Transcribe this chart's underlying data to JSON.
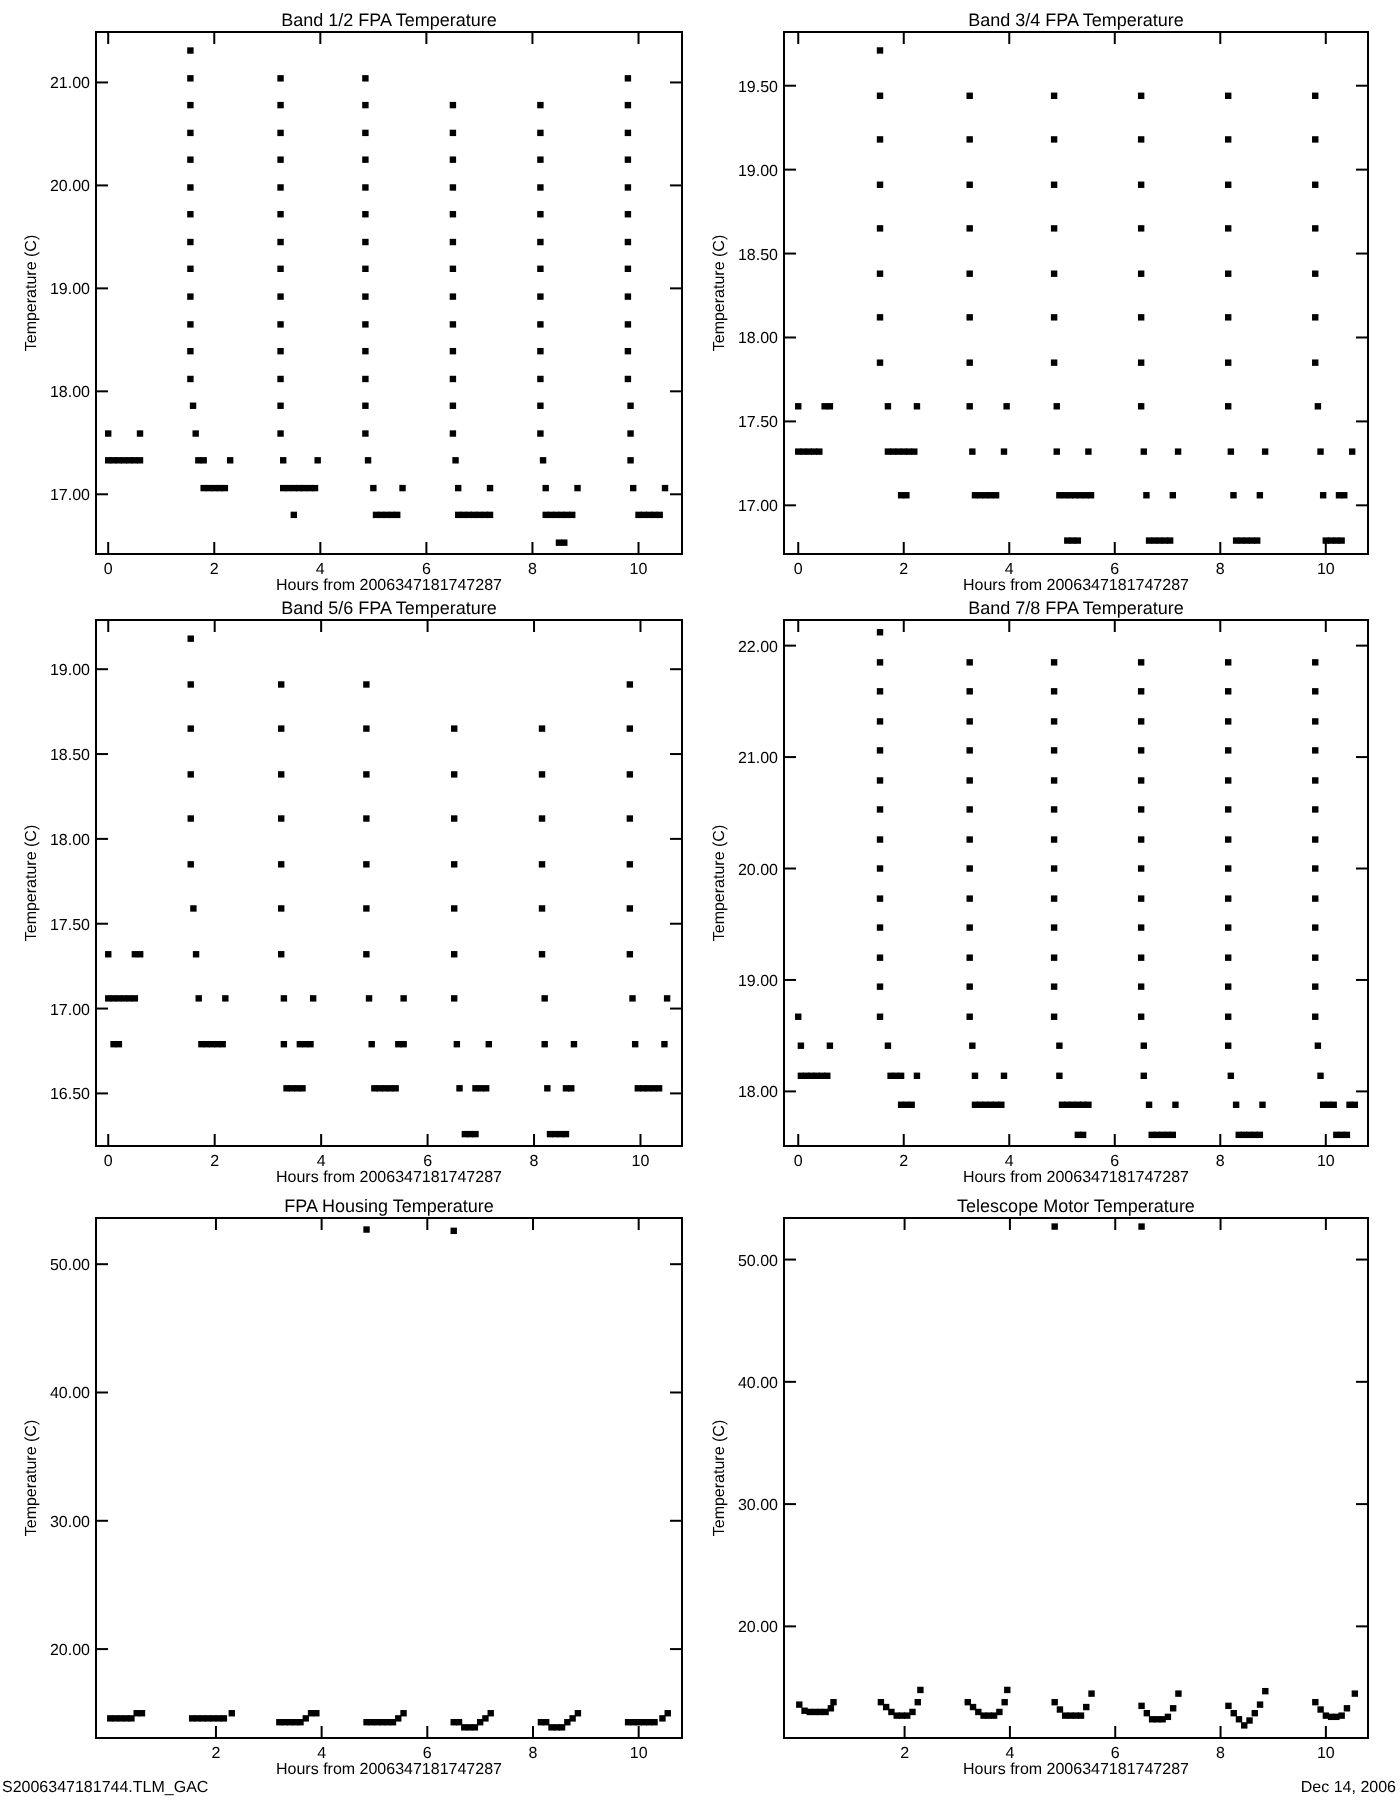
{
  "chart_data": [
    {
      "type": "scatter",
      "title": "Band 1/2 FPA Temperature",
      "xlabel": "Hours from 2006347181747287",
      "ylabel": "Temperature (C)",
      "marker": "square",
      "xlim": [
        -0.23,
        10.82
      ],
      "xticks": [
        0,
        2,
        4,
        6,
        8,
        10
      ],
      "ylim": [
        16.42,
        21.49
      ],
      "yticks": [
        {
          "value": 17,
          "label": "17.00"
        },
        {
          "value": 18,
          "label": "18.00"
        },
        {
          "value": 19,
          "label": "19.00"
        },
        {
          "value": 20,
          "label": "20.00"
        },
        {
          "value": 21,
          "label": "21.00"
        }
      ],
      "series": [
        {
          "color": "#000000",
          "x": [
            0,
            0.6,
            0,
            0.1,
            0.2,
            0.3,
            0.4,
            0.5,
            0.6
          ],
          "values": [
            17.59,
            17.59,
            17.33,
            17.33,
            17.33,
            17.33,
            17.33,
            17.33,
            17.33
          ]
        },
        {
          "color": "#000000",
          "x": [
            1.55,
            1.55,
            1.55,
            1.55,
            1.55,
            1.55,
            1.55,
            1.55,
            1.55,
            1.55,
            1.55,
            1.55,
            1.55,
            1.6,
            1.65,
            1.7,
            1.8,
            2.3,
            1.8,
            1.9,
            2.0,
            2.1,
            2.2
          ],
          "values": [
            21.31,
            21.04,
            20.78,
            20.51,
            20.25,
            19.98,
            19.72,
            19.45,
            19.19,
            18.92,
            18.65,
            18.39,
            18.12,
            17.86,
            17.59,
            17.33,
            17.33,
            17.33,
            17.06,
            17.06,
            17.06,
            17.06,
            17.06
          ]
        },
        {
          "color": "#000000",
          "x": [
            3.25,
            3.25,
            3.25,
            3.25,
            3.25,
            3.25,
            3.25,
            3.25,
            3.25,
            3.25,
            3.25,
            3.25,
            3.25,
            3.25,
            3.3,
            3.95,
            3.3,
            3.4,
            3.5,
            3.6,
            3.7,
            3.8,
            3.9,
            3.5
          ],
          "values": [
            21.04,
            20.78,
            20.51,
            20.25,
            19.98,
            19.72,
            19.45,
            19.19,
            18.92,
            18.65,
            18.39,
            18.12,
            17.86,
            17.59,
            17.33,
            17.33,
            17.06,
            17.06,
            17.06,
            17.06,
            17.06,
            17.06,
            17.06,
            16.8
          ]
        },
        {
          "color": "#000000",
          "x": [
            4.85,
            4.85,
            4.85,
            4.85,
            4.85,
            4.85,
            4.85,
            4.85,
            4.85,
            4.85,
            4.85,
            4.85,
            4.85,
            4.85,
            4.9,
            5.0,
            5.55,
            5.05,
            5.15,
            5.25,
            5.35,
            5.45
          ],
          "values": [
            21.04,
            20.78,
            20.51,
            20.25,
            19.98,
            19.72,
            19.45,
            19.19,
            18.92,
            18.65,
            18.39,
            18.12,
            17.86,
            17.59,
            17.33,
            17.06,
            17.06,
            16.8,
            16.8,
            16.8,
            16.8,
            16.8
          ]
        },
        {
          "color": "#000000",
          "x": [
            6.5,
            6.5,
            6.5,
            6.5,
            6.5,
            6.5,
            6.5,
            6.5,
            6.5,
            6.5,
            6.5,
            6.5,
            6.5,
            6.55,
            6.6,
            7.2,
            6.6,
            6.7,
            6.8,
            6.9,
            7.0,
            7.1,
            7.2
          ],
          "values": [
            20.78,
            20.51,
            20.25,
            19.98,
            19.72,
            19.45,
            19.19,
            18.92,
            18.65,
            18.39,
            18.12,
            17.86,
            17.59,
            17.33,
            17.06,
            17.06,
            16.8,
            16.8,
            16.8,
            16.8,
            16.8,
            16.8,
            16.8
          ]
        },
        {
          "color": "#000000",
          "x": [
            8.15,
            8.15,
            8.15,
            8.15,
            8.15,
            8.15,
            8.15,
            8.15,
            8.15,
            8.15,
            8.15,
            8.15,
            8.15,
            8.2,
            8.25,
            8.85,
            8.25,
            8.35,
            8.45,
            8.55,
            8.65,
            8.75,
            8.5,
            8.6
          ],
          "values": [
            20.78,
            20.51,
            20.25,
            19.98,
            19.72,
            19.45,
            19.19,
            18.92,
            18.65,
            18.39,
            18.12,
            17.86,
            17.59,
            17.33,
            17.06,
            17.06,
            16.8,
            16.8,
            16.8,
            16.8,
            16.8,
            16.8,
            16.53,
            16.53
          ]
        },
        {
          "color": "#000000",
          "x": [
            9.8,
            9.8,
            9.8,
            9.8,
            9.8,
            9.8,
            9.8,
            9.8,
            9.8,
            9.8,
            9.8,
            9.8,
            9.85,
            9.85,
            9.85,
            9.9,
            10.5,
            10.0,
            10.1,
            10.2,
            10.3,
            10.4
          ],
          "values": [
            21.04,
            20.78,
            20.51,
            20.25,
            19.98,
            19.72,
            19.45,
            19.19,
            18.92,
            18.65,
            18.39,
            18.12,
            17.86,
            17.59,
            17.33,
            17.06,
            17.06,
            16.8,
            16.8,
            16.8,
            16.8,
            16.8
          ]
        }
      ]
    },
    {
      "type": "scatter",
      "title": "Band 3/4 FPA Temperature",
      "xlabel": "Hours from 2006347181747287",
      "ylabel": "Temperature (C)",
      "marker": "square",
      "xlim": [
        -0.27,
        10.8
      ],
      "xticks": [
        0,
        2,
        4,
        6,
        8,
        10
      ],
      "ylim": [
        16.71,
        19.82
      ],
      "yticks": [
        {
          "value": 17,
          "label": "17.00"
        },
        {
          "value": 17.5,
          "label": "17.50"
        },
        {
          "value": 18,
          "label": "18.00"
        },
        {
          "value": 18.5,
          "label": "18.50"
        },
        {
          "value": 19,
          "label": "19.00"
        },
        {
          "value": 19.5,
          "label": "19.50"
        }
      ],
      "series": [
        {
          "color": "#000000",
          "x": [
            0,
            0.5,
            0.6,
            0,
            0.1,
            0.2,
            0.3,
            0.4
          ],
          "values": [
            17.59,
            17.59,
            17.59,
            17.32,
            17.32,
            17.32,
            17.32,
            17.32
          ]
        },
        {
          "color": "#000000",
          "x": [
            1.55,
            1.55,
            1.55,
            1.55,
            1.55,
            1.55,
            1.55,
            1.55,
            1.7,
            1.7,
            1.8,
            1.9,
            2.0,
            2.1,
            2.2,
            2.25,
            1.95,
            2.05
          ],
          "values": [
            19.71,
            19.44,
            19.18,
            18.91,
            18.65,
            18.38,
            18.12,
            17.85,
            17.59,
            17.32,
            17.32,
            17.32,
            17.32,
            17.32,
            17.32,
            17.59,
            17.06,
            17.06
          ]
        },
        {
          "color": "#000000",
          "x": [
            3.25,
            3.25,
            3.25,
            3.25,
            3.25,
            3.25,
            3.25,
            3.25,
            3.3,
            3.9,
            3.95,
            3.35,
            3.45,
            3.55,
            3.65,
            3.75
          ],
          "values": [
            19.44,
            19.18,
            18.91,
            18.65,
            18.38,
            18.12,
            17.85,
            17.59,
            17.32,
            17.32,
            17.59,
            17.06,
            17.06,
            17.06,
            17.06,
            17.06
          ]
        },
        {
          "color": "#000000",
          "x": [
            4.85,
            4.85,
            4.85,
            4.85,
            4.85,
            4.85,
            4.85,
            4.9,
            4.9,
            5.5,
            4.95,
            5.05,
            5.15,
            5.25,
            5.35,
            5.45,
            5.55,
            5.1,
            5.2,
            5.3
          ],
          "values": [
            19.44,
            19.18,
            18.91,
            18.65,
            18.38,
            18.12,
            17.85,
            17.59,
            17.32,
            17.32,
            17.06,
            17.06,
            17.06,
            17.06,
            17.06,
            17.06,
            17.06,
            16.79,
            16.79,
            16.79
          ]
        },
        {
          "color": "#000000",
          "x": [
            6.5,
            6.5,
            6.5,
            6.5,
            6.5,
            6.5,
            6.5,
            6.5,
            6.55,
            7.2,
            6.6,
            7.1,
            6.65,
            6.75,
            6.85,
            6.95,
            7.05
          ],
          "values": [
            19.44,
            19.18,
            18.91,
            18.65,
            18.38,
            18.12,
            17.85,
            17.59,
            17.32,
            17.32,
            17.06,
            17.06,
            16.79,
            16.79,
            16.79,
            16.79,
            16.79
          ]
        },
        {
          "color": "#000000",
          "x": [
            8.15,
            8.15,
            8.15,
            8.15,
            8.15,
            8.15,
            8.15,
            8.15,
            8.2,
            8.85,
            8.25,
            8.75,
            8.3,
            8.4,
            8.5,
            8.6,
            8.7
          ],
          "values": [
            19.44,
            19.18,
            18.91,
            18.65,
            18.38,
            18.12,
            17.85,
            17.59,
            17.32,
            17.32,
            17.06,
            17.06,
            16.79,
            16.79,
            16.79,
            16.79,
            16.79
          ]
        },
        {
          "color": "#000000",
          "x": [
            9.8,
            9.8,
            9.8,
            9.8,
            9.8,
            9.8,
            9.8,
            9.85,
            9.9,
            10.5,
            9.95,
            10.25,
            10.35,
            10.0,
            10.1,
            10.2,
            10.3
          ],
          "values": [
            19.44,
            19.18,
            18.91,
            18.65,
            18.38,
            18.12,
            17.85,
            17.59,
            17.32,
            17.32,
            17.06,
            17.06,
            17.06,
            16.79,
            16.79,
            16.79,
            16.79
          ]
        }
      ]
    },
    {
      "type": "scatter",
      "title": "Band 5/6 FPA Temperature",
      "xlabel": "Hours from 2006347181747287",
      "ylabel": "Temperature (C)",
      "marker": "square",
      "xlim": [
        -0.23,
        10.78
      ],
      "xticks": [
        0,
        2,
        4,
        6,
        8,
        10
      ],
      "ylim": [
        16.19,
        19.29
      ],
      "yticks": [
        {
          "value": 16.5,
          "label": "16.50"
        },
        {
          "value": 17,
          "label": "17.00"
        },
        {
          "value": 17.5,
          "label": "17.50"
        },
        {
          "value": 18,
          "label": "18.00"
        },
        {
          "value": 18.5,
          "label": "18.50"
        },
        {
          "value": 19,
          "label": "19.00"
        }
      ],
      "series": [
        {
          "color": "#000000",
          "x": [
            0,
            0.5,
            0.6,
            0,
            0.1,
            0.2,
            0.3,
            0.4,
            0.5,
            0.1,
            0.2
          ],
          "values": [
            17.32,
            17.32,
            17.32,
            17.06,
            17.06,
            17.06,
            17.06,
            17.06,
            17.06,
            16.79,
            16.79
          ]
        },
        {
          "color": "#000000",
          "x": [
            1.55,
            1.55,
            1.55,
            1.55,
            1.55,
            1.55,
            1.6,
            1.65,
            1.7,
            2.2,
            1.75,
            1.85,
            1.95,
            2.05,
            2.15
          ],
          "values": [
            19.18,
            18.91,
            18.65,
            18.38,
            18.12,
            17.85,
            17.59,
            17.32,
            17.06,
            17.06,
            16.79,
            16.79,
            16.79,
            16.79,
            16.79
          ]
        },
        {
          "color": "#000000",
          "x": [
            3.25,
            3.25,
            3.25,
            3.25,
            3.25,
            3.25,
            3.25,
            3.3,
            3.85,
            3.3,
            3.6,
            3.7,
            3.8,
            3.35,
            3.45,
            3.55,
            3.65
          ],
          "values": [
            18.91,
            18.65,
            18.38,
            18.12,
            17.85,
            17.59,
            17.32,
            17.06,
            17.06,
            16.79,
            16.79,
            16.79,
            16.79,
            16.53,
            16.53,
            16.53,
            16.53
          ]
        },
        {
          "color": "#000000",
          "x": [
            4.85,
            4.85,
            4.85,
            4.85,
            4.85,
            4.85,
            4.85,
            4.9,
            5.55,
            4.95,
            5.45,
            5.55,
            5.0,
            5.1,
            5.2,
            5.3,
            5.4
          ],
          "values": [
            18.91,
            18.65,
            18.38,
            18.12,
            17.85,
            17.59,
            17.32,
            17.06,
            17.06,
            16.79,
            16.79,
            16.79,
            16.53,
            16.53,
            16.53,
            16.53,
            16.53
          ]
        },
        {
          "color": "#000000",
          "x": [
            6.5,
            6.5,
            6.5,
            6.5,
            6.5,
            6.5,
            6.5,
            6.55,
            7.15,
            6.6,
            6.9,
            7.0,
            7.1,
            6.7,
            6.8,
            6.9
          ],
          "values": [
            18.65,
            18.38,
            18.12,
            17.85,
            17.59,
            17.32,
            17.06,
            16.79,
            16.79,
            16.53,
            16.53,
            16.53,
            16.53,
            16.26,
            16.26,
            16.26
          ]
        },
        {
          "color": "#000000",
          "x": [
            8.15,
            8.15,
            8.15,
            8.15,
            8.15,
            8.15,
            8.2,
            8.2,
            8.75,
            8.25,
            8.6,
            8.7,
            8.3,
            8.4,
            8.5,
            8.6
          ],
          "values": [
            18.65,
            18.38,
            18.12,
            17.85,
            17.59,
            17.32,
            17.06,
            16.79,
            16.79,
            16.53,
            16.53,
            16.53,
            16.26,
            16.26,
            16.26,
            16.26
          ]
        },
        {
          "color": "#000000",
          "x": [
            9.8,
            9.8,
            9.8,
            9.8,
            9.8,
            9.8,
            9.8,
            9.85,
            10.5,
            9.9,
            10.45,
            9.95,
            10.05,
            10.15,
            10.25,
            10.35
          ],
          "values": [
            18.91,
            18.65,
            18.38,
            18.12,
            17.85,
            17.59,
            17.32,
            17.06,
            17.06,
            16.79,
            16.79,
            16.53,
            16.53,
            16.53,
            16.53,
            16.53
          ]
        }
      ]
    },
    {
      "type": "scatter",
      "title": "Band 7/8 FPA Temperature",
      "xlabel": "Hours from 2006347181747287",
      "ylabel": "Temperature (C)",
      "marker": "square",
      "xlim": [
        -0.27,
        10.8
      ],
      "xticks": [
        0,
        2,
        4,
        6,
        8,
        10
      ],
      "ylim": [
        17.51,
        22.23
      ],
      "yticks": [
        {
          "value": 18,
          "label": "18.00"
        },
        {
          "value": 19,
          "label": "19.00"
        },
        {
          "value": 20,
          "label": "20.00"
        },
        {
          "value": 21,
          "label": "21.00"
        },
        {
          "value": 22,
          "label": "22.00"
        }
      ],
      "series": [
        {
          "color": "#000000",
          "x": [
            0,
            0.05,
            0.6,
            0.05,
            0.15,
            0.25,
            0.35,
            0.45,
            0.55
          ],
          "values": [
            18.67,
            18.41,
            18.41,
            18.14,
            18.14,
            18.14,
            18.14,
            18.14,
            18.14
          ]
        },
        {
          "color": "#000000",
          "x": [
            1.55,
            1.55,
            1.55,
            1.55,
            1.55,
            1.55,
            1.55,
            1.55,
            1.55,
            1.55,
            1.55,
            1.55,
            1.55,
            1.55,
            1.7,
            1.75,
            1.85,
            1.95,
            2.25,
            1.95,
            2.05,
            2.15
          ],
          "values": [
            22.12,
            21.85,
            21.59,
            21.32,
            21.06,
            20.79,
            20.53,
            20.26,
            20.0,
            19.73,
            19.47,
            19.2,
            18.94,
            18.67,
            18.41,
            18.14,
            18.14,
            18.14,
            18.14,
            17.88,
            17.88,
            17.88
          ]
        },
        {
          "color": "#000000",
          "x": [
            3.25,
            3.25,
            3.25,
            3.25,
            3.25,
            3.25,
            3.25,
            3.25,
            3.25,
            3.25,
            3.25,
            3.25,
            3.25,
            3.3,
            3.35,
            3.9,
            3.35,
            3.45,
            3.55,
            3.65,
            3.75,
            3.85
          ],
          "values": [
            21.85,
            21.59,
            21.32,
            21.06,
            20.79,
            20.53,
            20.26,
            20.0,
            19.73,
            19.47,
            19.2,
            18.94,
            18.67,
            18.41,
            18.14,
            18.14,
            17.88,
            17.88,
            17.88,
            17.88,
            17.88,
            17.88
          ]
        },
        {
          "color": "#000000",
          "x": [
            4.85,
            4.85,
            4.85,
            4.85,
            4.85,
            4.85,
            4.85,
            4.85,
            4.85,
            4.85,
            4.85,
            4.85,
            4.85,
            4.95,
            4.95,
            5.0,
            5.1,
            5.2,
            5.3,
            5.4,
            5.5,
            5.3,
            5.4
          ],
          "values": [
            21.85,
            21.59,
            21.32,
            21.06,
            20.79,
            20.53,
            20.26,
            20.0,
            19.73,
            19.47,
            19.2,
            18.94,
            18.67,
            18.41,
            18.14,
            17.88,
            17.88,
            17.88,
            17.88,
            17.88,
            17.88,
            17.61,
            17.61
          ]
        },
        {
          "color": "#000000",
          "x": [
            6.5,
            6.5,
            6.5,
            6.5,
            6.5,
            6.5,
            6.5,
            6.5,
            6.5,
            6.5,
            6.5,
            6.5,
            6.5,
            6.55,
            6.55,
            6.65,
            7.15,
            6.7,
            6.8,
            6.9,
            7.0,
            7.1
          ],
          "values": [
            21.85,
            21.59,
            21.32,
            21.06,
            20.79,
            20.53,
            20.26,
            20.0,
            19.73,
            19.47,
            19.2,
            18.94,
            18.67,
            18.41,
            18.14,
            17.88,
            17.88,
            17.61,
            17.61,
            17.61,
            17.61,
            17.61
          ]
        },
        {
          "color": "#000000",
          "x": [
            8.15,
            8.15,
            8.15,
            8.15,
            8.15,
            8.15,
            8.15,
            8.15,
            8.15,
            8.15,
            8.15,
            8.15,
            8.15,
            8.15,
            8.2,
            8.3,
            8.8,
            8.35,
            8.45,
            8.55,
            8.65,
            8.75
          ],
          "values": [
            21.85,
            21.59,
            21.32,
            21.06,
            20.79,
            20.53,
            20.26,
            20.0,
            19.73,
            19.47,
            19.2,
            18.94,
            18.67,
            18.41,
            18.14,
            17.88,
            17.88,
            17.61,
            17.61,
            17.61,
            17.61,
            17.61
          ]
        },
        {
          "color": "#000000",
          "x": [
            9.8,
            9.8,
            9.8,
            9.8,
            9.8,
            9.8,
            9.8,
            9.8,
            9.8,
            9.8,
            9.8,
            9.8,
            9.8,
            9.85,
            9.9,
            9.95,
            10.05,
            10.15,
            10.45,
            10.55,
            10.2,
            10.3,
            10.4
          ],
          "values": [
            21.85,
            21.59,
            21.32,
            21.06,
            20.79,
            20.53,
            20.26,
            20.0,
            19.73,
            19.47,
            19.2,
            18.94,
            18.67,
            18.41,
            18.14,
            17.88,
            17.88,
            17.88,
            17.88,
            17.88,
            17.61,
            17.61,
            17.61
          ]
        }
      ]
    },
    {
      "type": "scatter",
      "title": "FPA Housing Temperature",
      "xlabel": "Hours from 2006347181747287",
      "ylabel": "Temperature (C)",
      "marker": "square",
      "xlim": [
        -0.27,
        10.82
      ],
      "xticks": [
        2,
        4,
        6,
        8,
        10
      ],
      "ylim": [
        13.07,
        53.6
      ],
      "yticks": [
        {
          "value": 20,
          "label": "20.00"
        },
        {
          "value": 30,
          "label": "30.00"
        },
        {
          "value": 40,
          "label": "40.00"
        },
        {
          "value": 50,
          "label": "50.00"
        }
      ],
      "annotations": [
        "S2006347181744.TLM_GAC"
      ],
      "series": [
        {
          "color": "#000000",
          "x": [
            0,
            0.1,
            0.2,
            0.3,
            0.4,
            0.5,
            0.6,
            1.55,
            1.65,
            1.75,
            1.85,
            1.95,
            2.05,
            2.15,
            2.3,
            3.2,
            3.3,
            3.4,
            3.5,
            3.6,
            3.7,
            3.8,
            3.9,
            4.85,
            4.95,
            5.05,
            5.15,
            5.25,
            5.35,
            5.45,
            5.55,
            6.5,
            6.6,
            6.7,
            6.8,
            6.9,
            7.0,
            7.1,
            7.2,
            8.15,
            8.25,
            8.35,
            8.45,
            8.55,
            8.65,
            8.75,
            8.85,
            9.8,
            9.9,
            10.0,
            10.1,
            10.2,
            10.3,
            10.45,
            10.55
          ],
          "values": [
            14.6,
            14.6,
            14.6,
            14.6,
            14.6,
            15.0,
            15.0,
            14.6,
            14.6,
            14.6,
            14.6,
            14.6,
            14.6,
            14.6,
            15.0,
            14.3,
            14.3,
            14.3,
            14.3,
            14.3,
            14.6,
            15.0,
            15.0,
            14.3,
            14.3,
            14.3,
            14.3,
            14.3,
            14.3,
            14.6,
            15.0,
            14.3,
            14.3,
            13.9,
            13.9,
            13.9,
            14.3,
            14.6,
            15.0,
            14.3,
            14.3,
            13.9,
            13.9,
            13.9,
            14.3,
            14.6,
            15.0,
            14.3,
            14.3,
            14.3,
            14.3,
            14.3,
            14.3,
            14.6,
            15.0
          ]
        },
        {
          "color": "#000000",
          "x": [
            4.85,
            6.5
          ],
          "values": [
            52.7,
            52.6
          ]
        }
      ]
    },
    {
      "type": "scatter",
      "title": "Telescope Motor Temperature",
      "xlabel": "Hours from 2006347181747287",
      "ylabel": "Temperature (C)",
      "marker": "square",
      "xlim": [
        -0.29,
        10.8
      ],
      "xticks": [
        2,
        4,
        6,
        8,
        10
      ],
      "ylim": [
        10.87,
        53.4
      ],
      "yticks": [
        {
          "value": 20,
          "label": "20.00"
        },
        {
          "value": 30,
          "label": "30.00"
        },
        {
          "value": 40,
          "label": "40.00"
        },
        {
          "value": 50,
          "label": "50.00"
        }
      ],
      "annotations": [
        "Dec 14, 2006"
      ],
      "series": [
        {
          "color": "#000000",
          "x": [
            0,
            0.1,
            0.2,
            0.3,
            0.4,
            0.5,
            0.6,
            0.65,
            1.55,
            1.65,
            1.75,
            1.85,
            1.95,
            2.05,
            2.15,
            2.25,
            2.3,
            3.2,
            3.3,
            3.4,
            3.5,
            3.6,
            3.7,
            3.8,
            3.9,
            3.95,
            4.85,
            4.95,
            5.05,
            5.15,
            5.25,
            5.35,
            5.45,
            5.55,
            6.5,
            6.6,
            6.7,
            6.8,
            6.9,
            7.0,
            7.1,
            7.2,
            8.15,
            8.25,
            8.35,
            8.45,
            8.55,
            8.65,
            8.75,
            8.85,
            9.8,
            9.9,
            10.0,
            10.1,
            10.2,
            10.3,
            10.4,
            10.55
          ],
          "values": [
            13.6,
            13.1,
            13.0,
            13.0,
            13.0,
            13.0,
            13.3,
            13.8,
            13.8,
            13.4,
            13.0,
            12.7,
            12.7,
            12.7,
            13.0,
            13.8,
            14.8,
            13.8,
            13.4,
            13.0,
            12.7,
            12.7,
            12.7,
            13.0,
            13.8,
            14.8,
            13.8,
            13.2,
            12.7,
            12.7,
            12.7,
            12.7,
            13.4,
            14.5,
            13.5,
            12.9,
            12.4,
            12.4,
            12.4,
            12.6,
            13.3,
            14.5,
            13.5,
            12.9,
            12.4,
            11.9,
            12.3,
            12.9,
            13.6,
            14.7,
            13.8,
            13.2,
            12.7,
            12.6,
            12.6,
            12.7,
            13.3,
            14.5
          ]
        },
        {
          "color": "#000000",
          "x": [
            4.85,
            6.5
          ],
          "values": [
            52.7,
            52.7
          ]
        }
      ]
    }
  ]
}
